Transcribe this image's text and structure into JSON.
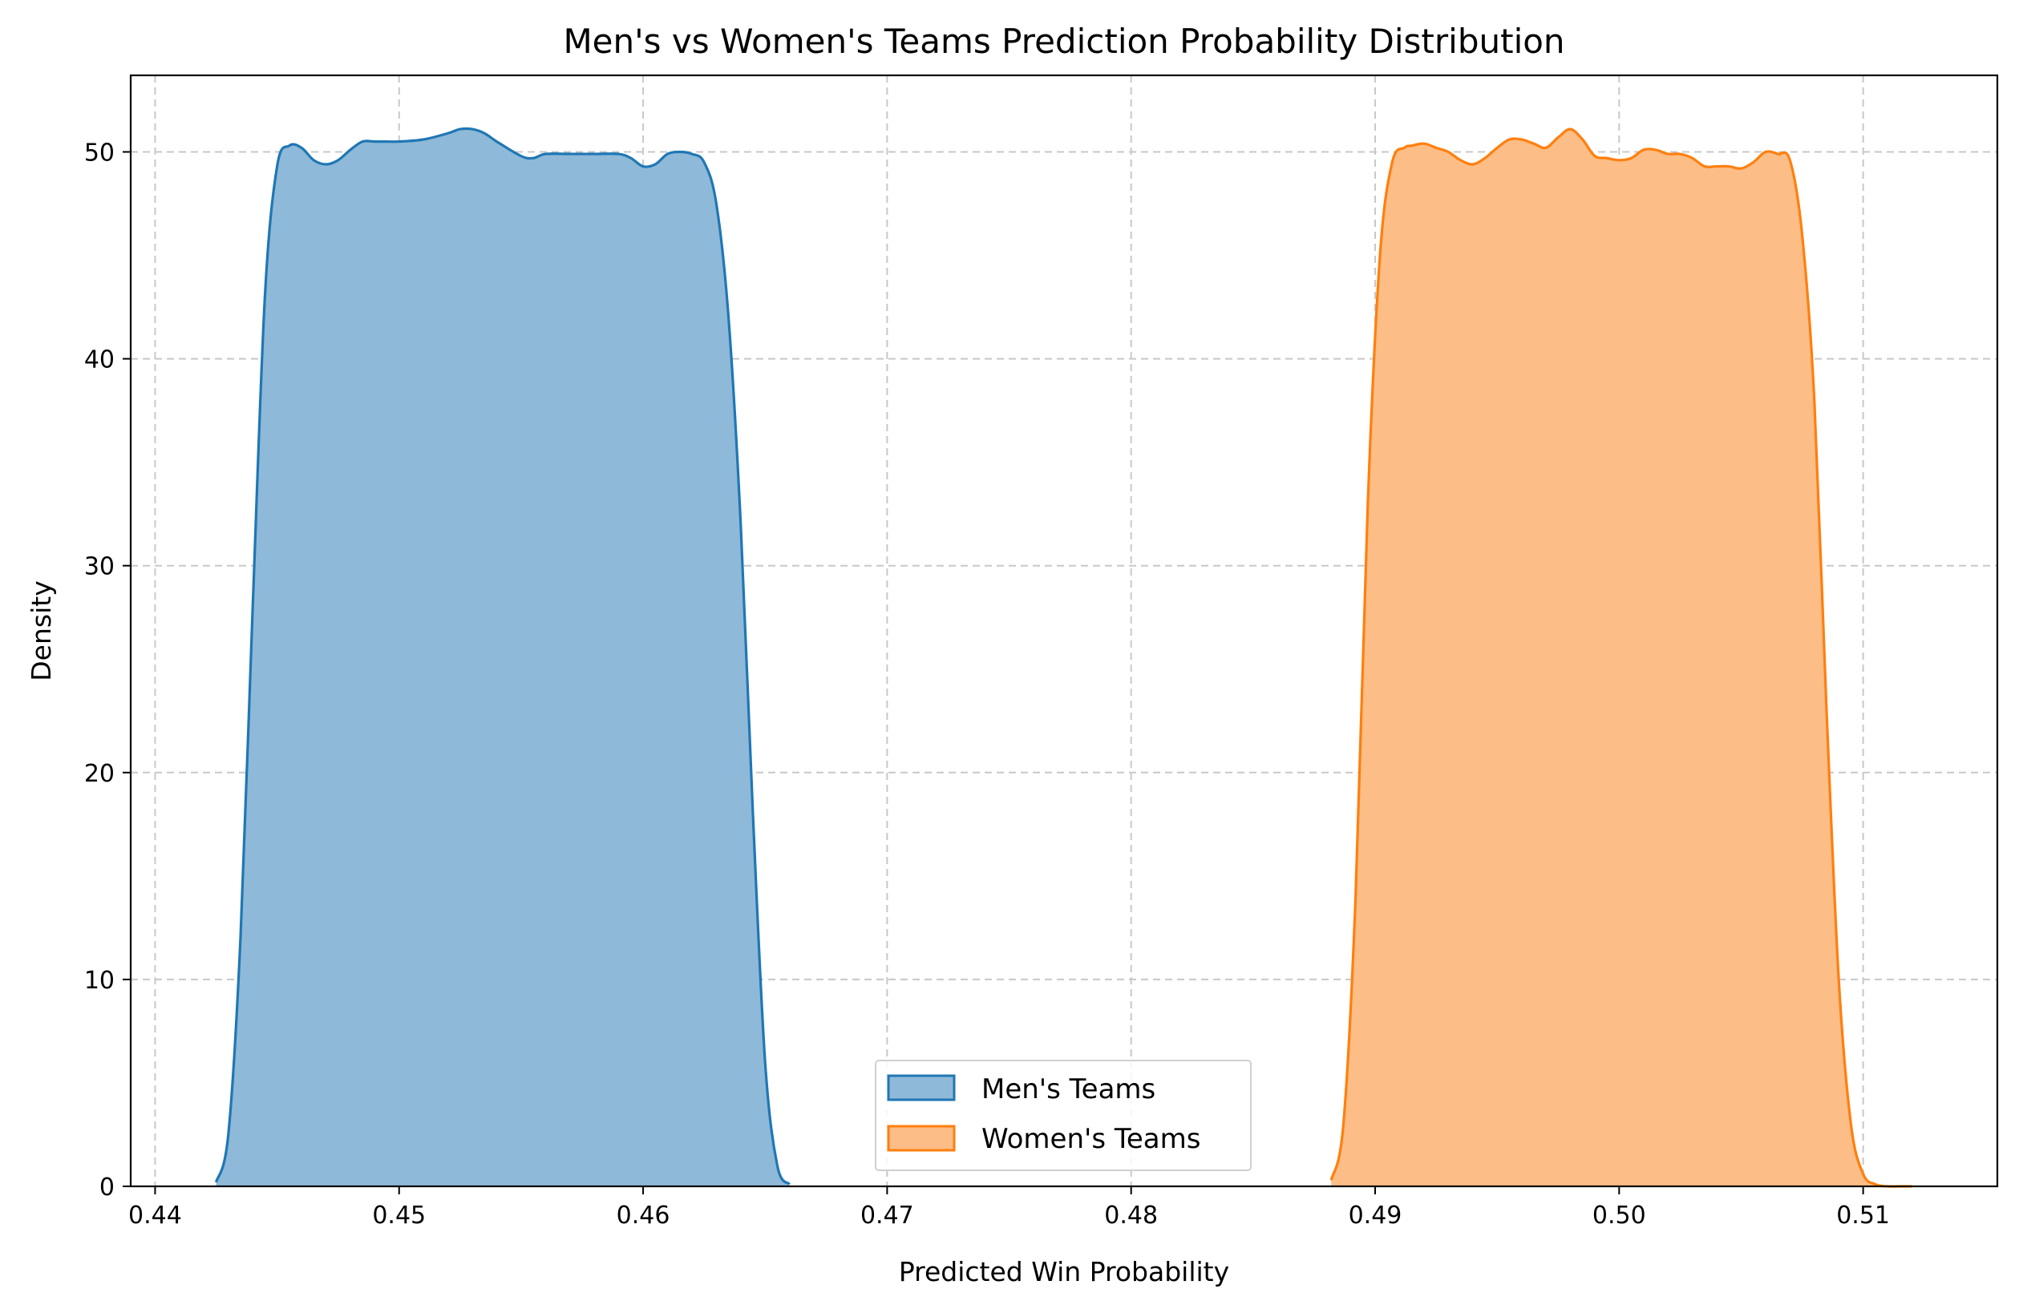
{
  "chart_data": {
    "type": "area",
    "title": "Men's vs Women's Teams Prediction Probability Distribution",
    "xlabel": "Predicted Win Probability",
    "ylabel": "Density",
    "xlim": [
      0.439,
      0.5155
    ],
    "ylim": [
      0,
      53.7
    ],
    "xticks": [
      0.44,
      0.45,
      0.46,
      0.47,
      0.48,
      0.49,
      0.5,
      0.51
    ],
    "xtick_labels": [
      "0.44",
      "0.45",
      "0.46",
      "0.47",
      "0.48",
      "0.49",
      "0.50",
      "0.51"
    ],
    "yticks": [
      0,
      10,
      20,
      30,
      40,
      50
    ],
    "ytick_labels": [
      "0",
      "10",
      "20",
      "30",
      "40",
      "50"
    ],
    "grid": true,
    "legend_position": "lower center",
    "series": [
      {
        "name": "Men's Teams",
        "color": "#1f77b4",
        "fill": "#8fb9d8",
        "x": [
          0.4425,
          0.443,
          0.4435,
          0.444,
          0.4445,
          0.445,
          0.4455,
          0.446,
          0.4465,
          0.447,
          0.4475,
          0.448,
          0.4485,
          0.449,
          0.4495,
          0.45,
          0.451,
          0.452,
          0.4525,
          0.453,
          0.4535,
          0.454,
          0.455,
          0.4555,
          0.456,
          0.457,
          0.458,
          0.459,
          0.4595,
          0.46,
          0.4605,
          0.461,
          0.4615,
          0.462,
          0.4625,
          0.463,
          0.4635,
          0.464,
          0.4645,
          0.465,
          0.4655,
          0.466
        ],
        "y": [
          0.2,
          2.5,
          12,
          28,
          43,
          49.3,
          50.3,
          50.2,
          49.6,
          49.4,
          49.6,
          50.1,
          50.5,
          50.5,
          50.5,
          50.5,
          50.6,
          50.9,
          51.1,
          51.1,
          50.9,
          50.5,
          49.8,
          49.7,
          49.9,
          49.9,
          49.9,
          49.9,
          49.7,
          49.3,
          49.4,
          49.9,
          50.0,
          49.9,
          49.5,
          47.5,
          42,
          32,
          18,
          6,
          1.0,
          0.1
        ]
      },
      {
        "name": "Women's Teams",
        "color": "#ff7f0e",
        "fill": "#fdbd86",
        "x": [
          0.4882,
          0.4887,
          0.4892,
          0.4897,
          0.4902,
          0.4907,
          0.4912,
          0.4915,
          0.492,
          0.4925,
          0.493,
          0.4935,
          0.494,
          0.4945,
          0.495,
          0.4955,
          0.496,
          0.4965,
          0.497,
          0.4975,
          0.498,
          0.4985,
          0.499,
          0.4995,
          0.5,
          0.5005,
          0.501,
          0.5015,
          0.502,
          0.5025,
          0.503,
          0.5035,
          0.504,
          0.5045,
          0.505,
          0.5055,
          0.506,
          0.5065,
          0.507,
          0.5075,
          0.508,
          0.5085,
          0.509,
          0.5095,
          0.51,
          0.5105,
          0.511,
          0.5115,
          0.512
        ],
        "y": [
          0.3,
          3,
          14,
          33,
          45,
          49.5,
          50.2,
          50.3,
          50.4,
          50.2,
          50.0,
          49.6,
          49.4,
          49.7,
          50.2,
          50.6,
          50.6,
          50.4,
          50.2,
          50.7,
          51.1,
          50.6,
          49.8,
          49.7,
          49.6,
          49.7,
          50.1,
          50.1,
          49.9,
          49.9,
          49.7,
          49.3,
          49.3,
          49.3,
          49.2,
          49.5,
          50.0,
          49.9,
          49.6,
          46.0,
          38,
          23,
          10,
          3,
          0.6,
          0.1,
          0.0,
          0.0,
          0.0
        ]
      }
    ]
  }
}
